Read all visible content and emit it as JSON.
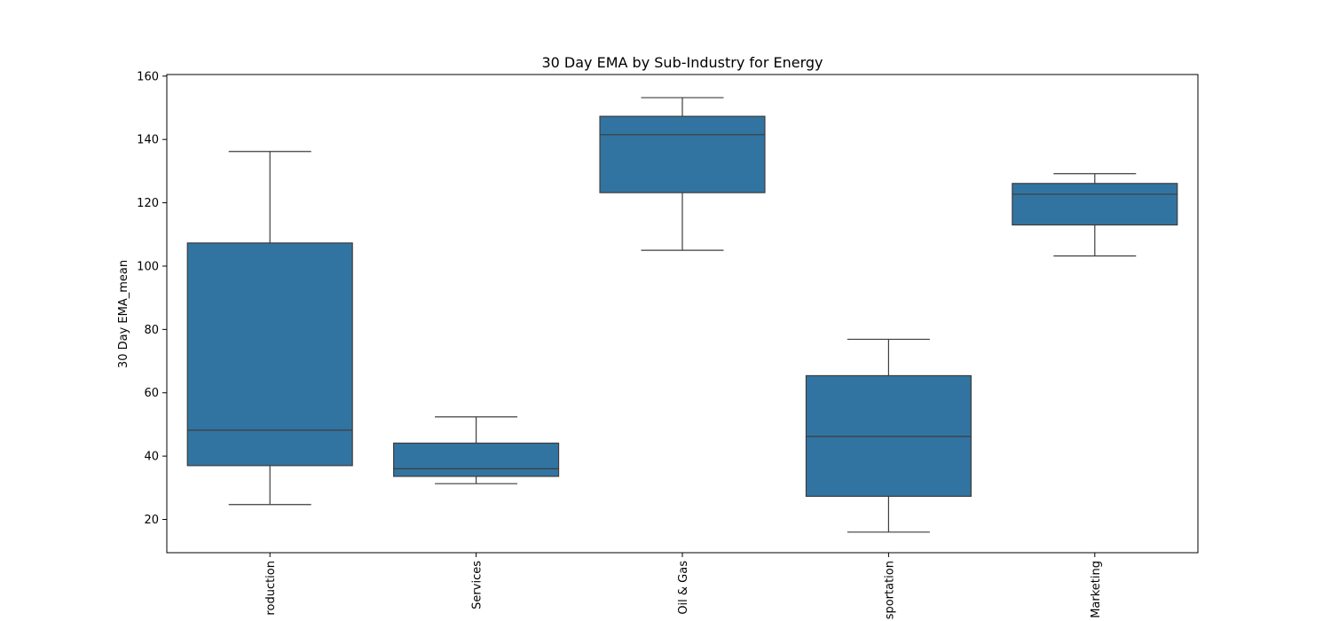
{
  "chart_data": {
    "type": "box",
    "title": "30 Day EMA by Sub-Industry for Energy",
    "xlabel": "",
    "ylabel": "30 Day EMA_mean",
    "ylim": [
      9.5,
      160.5
    ],
    "yticks": [
      20,
      40,
      60,
      80,
      100,
      120,
      140,
      160
    ],
    "grid": false,
    "box_color": "#3274a1",
    "line_color": "#3d3d3d",
    "categories": [
      "roduction",
      "Services",
      "Oil & Gas",
      "sportation",
      "Marketing"
    ],
    "boxes": [
      {
        "category": "roduction",
        "whisker_low": 24.7,
        "q1": 37.0,
        "median": 48.2,
        "q3": 107.3,
        "whisker_high": 136.2
      },
      {
        "category": "Services",
        "whisker_low": 31.3,
        "q1": 33.6,
        "median": 36.0,
        "q3": 44.1,
        "whisker_high": 52.4
      },
      {
        "category": "Oil & Gas",
        "whisker_low": 105.0,
        "q1": 123.2,
        "median": 141.5,
        "q3": 147.3,
        "whisker_high": 153.2
      },
      {
        "category": "sportation",
        "whisker_low": 16.0,
        "q1": 27.3,
        "median": 46.2,
        "q3": 65.4,
        "whisker_high": 76.9
      },
      {
        "category": "Marketing",
        "whisker_low": 103.2,
        "q1": 113.0,
        "median": 122.7,
        "q3": 126.1,
        "whisker_high": 129.2
      }
    ]
  }
}
